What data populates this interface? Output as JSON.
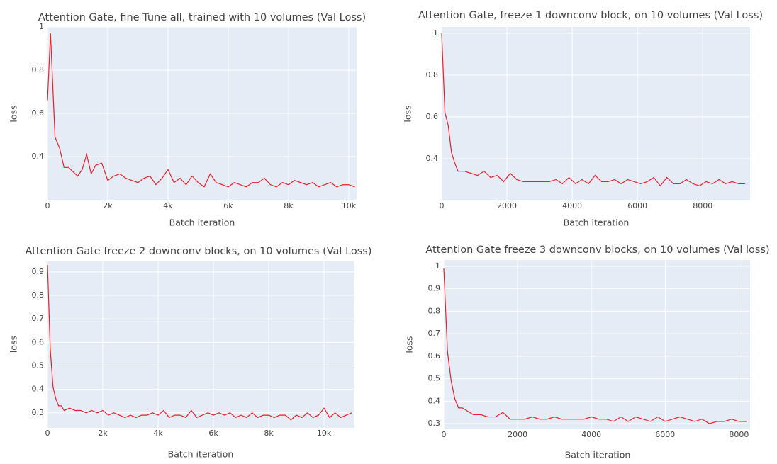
{
  "chart_data": [
    {
      "type": "line",
      "title": "Attention Gate, fine Tune all, trained with 10 volumes (Val Loss)",
      "xlabel": "Batch iteration",
      "ylabel": "loss",
      "color": "#e8202a",
      "grid": true,
      "xlim": [
        0,
        10260
      ],
      "ylim": [
        0.197,
        1.0
      ],
      "xticks": [
        0,
        {
          "value": 2000,
          "label": "2k"
        },
        {
          "value": 4000,
          "label": "4k"
        },
        {
          "value": 6000,
          "label": "6k"
        },
        {
          "value": 8000,
          "label": "8k"
        },
        {
          "value": 10000,
          "label": "10k"
        }
      ],
      "yticks": [
        0.4,
        0.6,
        0.8,
        1
      ],
      "x": [
        0,
        100,
        250,
        400,
        550,
        700,
        850,
        1000,
        1150,
        1300,
        1450,
        1600,
        1800,
        2000,
        2200,
        2400,
        2600,
        2800,
        3000,
        3200,
        3400,
        3600,
        3800,
        4000,
        4200,
        4400,
        4600,
        4800,
        5000,
        5200,
        5400,
        5600,
        5800,
        6000,
        6200,
        6400,
        6600,
        6800,
        7000,
        7200,
        7400,
        7600,
        7800,
        8000,
        8200,
        8400,
        8600,
        8800,
        9000,
        9200,
        9400,
        9600,
        9800,
        10000,
        10200
      ],
      "values": [
        0.66,
        0.97,
        0.49,
        0.44,
        0.35,
        0.35,
        0.33,
        0.31,
        0.34,
        0.41,
        0.32,
        0.36,
        0.37,
        0.29,
        0.31,
        0.32,
        0.3,
        0.29,
        0.28,
        0.3,
        0.31,
        0.27,
        0.3,
        0.34,
        0.28,
        0.3,
        0.27,
        0.31,
        0.28,
        0.26,
        0.32,
        0.28,
        0.27,
        0.26,
        0.28,
        0.27,
        0.26,
        0.28,
        0.28,
        0.3,
        0.27,
        0.26,
        0.28,
        0.27,
        0.29,
        0.28,
        0.27,
        0.28,
        0.26,
        0.27,
        0.28,
        0.26,
        0.27,
        0.27,
        0.26
      ]
    },
    {
      "type": "line",
      "title": "Attention Gate, freeze 1 downconv block, on 10 volumes (Val Loss)",
      "xlabel": "Batch iteration",
      "ylabel": "loss",
      "color": "#e8202a",
      "grid": true,
      "xlim": [
        0,
        9450
      ],
      "ylim": [
        0.2,
        1.03
      ],
      "xticks": [
        0,
        2000,
        4000,
        6000,
        8000
      ],
      "yticks": [
        0.4,
        0.6,
        0.8,
        1
      ],
      "x": [
        0,
        100,
        200,
        300,
        400,
        500,
        700,
        900,
        1100,
        1300,
        1500,
        1700,
        1900,
        2100,
        2300,
        2500,
        2700,
        2900,
        3100,
        3300,
        3500,
        3700,
        3900,
        4100,
        4300,
        4500,
        4700,
        4900,
        5100,
        5300,
        5500,
        5700,
        5900,
        6100,
        6300,
        6500,
        6700,
        6900,
        7100,
        7300,
        7500,
        7700,
        7900,
        8100,
        8300,
        8500,
        8700,
        8900,
        9100,
        9300
      ],
      "values": [
        1.0,
        0.62,
        0.56,
        0.43,
        0.38,
        0.34,
        0.34,
        0.33,
        0.32,
        0.34,
        0.31,
        0.32,
        0.29,
        0.33,
        0.3,
        0.29,
        0.29,
        0.29,
        0.29,
        0.29,
        0.3,
        0.28,
        0.31,
        0.28,
        0.3,
        0.28,
        0.32,
        0.29,
        0.29,
        0.3,
        0.28,
        0.3,
        0.29,
        0.28,
        0.29,
        0.31,
        0.27,
        0.31,
        0.28,
        0.28,
        0.3,
        0.28,
        0.27,
        0.29,
        0.28,
        0.3,
        0.28,
        0.29,
        0.28,
        0.28
      ]
    },
    {
      "type": "line",
      "title": "Attention Gate freeze 2 downconv blocks, on 10 volumes (Val Loss)",
      "xlabel": "Batch iteration",
      "ylabel": "loss",
      "color": "#e8202a",
      "grid": true,
      "xlim": [
        0,
        11100
      ],
      "ylim": [
        0.236,
        0.948
      ],
      "xticks": [
        0,
        {
          "value": 2000,
          "label": "2k"
        },
        {
          "value": 4000,
          "label": "4k"
        },
        {
          "value": 6000,
          "label": "6k"
        },
        {
          "value": 8000,
          "label": "8k"
        },
        {
          "value": 10000,
          "label": "10k"
        }
      ],
      "yticks": [
        0.3,
        0.4,
        0.5,
        0.6,
        0.7,
        0.8,
        0.9
      ],
      "x": [
        0,
        100,
        200,
        300,
        400,
        500,
        600,
        800,
        1000,
        1200,
        1400,
        1600,
        1800,
        2000,
        2200,
        2400,
        2600,
        2800,
        3000,
        3200,
        3400,
        3600,
        3800,
        4000,
        4200,
        4400,
        4600,
        4800,
        5000,
        5200,
        5400,
        5600,
        5800,
        6000,
        6200,
        6400,
        6600,
        6800,
        7000,
        7200,
        7400,
        7600,
        7800,
        8000,
        8200,
        8400,
        8600,
        8800,
        9000,
        9200,
        9400,
        9600,
        9800,
        10000,
        10200,
        10400,
        10600,
        10800,
        11000
      ],
      "values": [
        0.93,
        0.57,
        0.41,
        0.36,
        0.33,
        0.33,
        0.31,
        0.32,
        0.31,
        0.31,
        0.3,
        0.31,
        0.3,
        0.31,
        0.29,
        0.3,
        0.29,
        0.28,
        0.29,
        0.28,
        0.29,
        0.29,
        0.3,
        0.29,
        0.31,
        0.28,
        0.29,
        0.29,
        0.28,
        0.31,
        0.28,
        0.29,
        0.3,
        0.29,
        0.3,
        0.29,
        0.3,
        0.28,
        0.29,
        0.28,
        0.3,
        0.28,
        0.29,
        0.29,
        0.28,
        0.29,
        0.29,
        0.27,
        0.29,
        0.28,
        0.3,
        0.28,
        0.29,
        0.32,
        0.28,
        0.3,
        0.28,
        0.29,
        0.3
      ]
    },
    {
      "type": "line",
      "title": "Attention Gate freeze 3 downconv blocks, on 10 volumes (Val loss)",
      "xlabel": "Batch iteration",
      "ylabel": "loss",
      "color": "#e8202a",
      "grid": true,
      "xlim": [
        0,
        8300
      ],
      "ylim": [
        0.275,
        1.028
      ],
      "xticks": [
        0,
        2000,
        4000,
        6000,
        8000
      ],
      "yticks": [
        0.3,
        0.4,
        0.5,
        0.6,
        0.7,
        0.8,
        0.9,
        1
      ],
      "x": [
        0,
        100,
        200,
        300,
        400,
        500,
        600,
        800,
        1000,
        1200,
        1400,
        1600,
        1800,
        2000,
        2200,
        2400,
        2600,
        2800,
        3000,
        3200,
        3400,
        3600,
        3800,
        4000,
        4200,
        4400,
        4600,
        4800,
        5000,
        5200,
        5400,
        5600,
        5800,
        6000,
        6200,
        6400,
        6600,
        6800,
        7000,
        7200,
        7400,
        7600,
        7800,
        8000,
        8200
      ],
      "values": [
        0.99,
        0.62,
        0.49,
        0.41,
        0.37,
        0.37,
        0.36,
        0.34,
        0.34,
        0.33,
        0.33,
        0.35,
        0.32,
        0.32,
        0.32,
        0.33,
        0.32,
        0.32,
        0.33,
        0.32,
        0.32,
        0.32,
        0.32,
        0.33,
        0.32,
        0.32,
        0.31,
        0.33,
        0.31,
        0.33,
        0.32,
        0.31,
        0.33,
        0.31,
        0.32,
        0.33,
        0.32,
        0.31,
        0.32,
        0.3,
        0.31,
        0.31,
        0.32,
        0.31,
        0.31
      ]
    }
  ]
}
